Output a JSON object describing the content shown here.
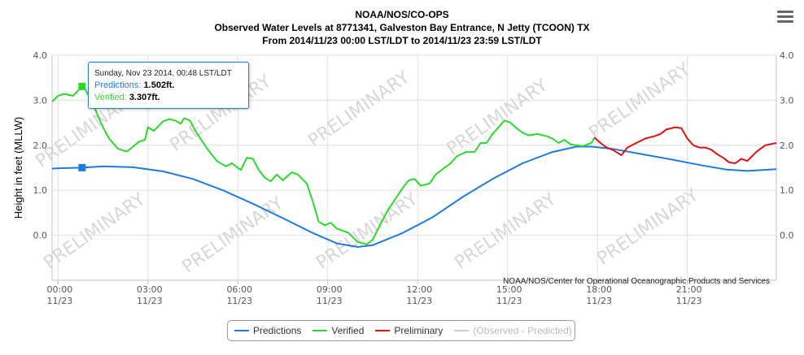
{
  "header": {
    "line1": "NOAA/NOS/CO-OPS",
    "line2": "Observed Water Levels at 8771341, Galveston Bay Entrance, N Jetty (TCOON) TX",
    "line3": "From 2014/11/23 00:00 LST/LDT to 2014/11/23 23:59 LST/LDT"
  },
  "menu_icon": "hamburger-menu-icon",
  "credit": "NOAA/NOS/Center for Operational Oceanographic Products and Services",
  "watermark": "PRELIMINARY",
  "tooltip": {
    "header": "Sunday, Nov 23 2014, 00:48 LST/LDT",
    "predictions_label": "Predictions:",
    "predictions_value": "1.502ft.",
    "verified_label": "Verified:",
    "verified_value": "3.307ft."
  },
  "legend": [
    {
      "label": "Predictions",
      "color": "#1e7be0",
      "enabled": true
    },
    {
      "label": "Verified",
      "color": "#2bd82b",
      "enabled": true
    },
    {
      "label": "Preliminary",
      "color": "#dd1111",
      "enabled": true
    },
    {
      "label": "(Observed - Predicted)",
      "color": "#cccccc",
      "enabled": false
    }
  ],
  "chart_data": {
    "type": "line",
    "xlabel": "",
    "ylabel": "Height in feet (MLLW)",
    "xlim": [
      -0.2,
      23.97
    ],
    "ylim": [
      -1.0,
      4.0
    ],
    "grid": true,
    "y_ticks": [
      "0.0",
      "1.0",
      "2.0",
      "3.0",
      "4.0"
    ],
    "x_ticks": [
      {
        "time": "00:00",
        "date": "11/23",
        "hour": 0
      },
      {
        "time": "03:00",
        "date": "11/23",
        "hour": 3
      },
      {
        "time": "06:00",
        "date": "11/23",
        "hour": 6
      },
      {
        "time": "09:00",
        "date": "11/23",
        "hour": 9
      },
      {
        "time": "12:00",
        "date": "11/23",
        "hour": 12
      },
      {
        "time": "15:00",
        "date": "11/23",
        "hour": 15
      },
      {
        "time": "18:00",
        "date": "11/23",
        "hour": 18
      },
      {
        "time": "21:00",
        "date": "11/23",
        "hour": 21
      }
    ],
    "highlighted_hour": 0.8,
    "series": [
      {
        "name": "Predictions",
        "color": "#1e7be0",
        "hours": [
          -0.2,
          0,
          0.8,
          1.5,
          2.5,
          3.5,
          4.5,
          5.5,
          6.5,
          7.5,
          8.5,
          9.3,
          10,
          10.5,
          11.5,
          12.5,
          13.5,
          14.5,
          15.5,
          16.5,
          17.3,
          17.8,
          18.5,
          19.5,
          20.5,
          21.5,
          22.3,
          23,
          23.97
        ],
        "values": [
          1.48,
          1.49,
          1.502,
          1.53,
          1.51,
          1.42,
          1.25,
          1.0,
          0.7,
          0.38,
          0.05,
          -0.18,
          -0.26,
          -0.22,
          0.05,
          0.4,
          0.85,
          1.25,
          1.6,
          1.85,
          1.97,
          1.97,
          1.92,
          1.8,
          1.68,
          1.55,
          1.46,
          1.43,
          1.47
        ]
      },
      {
        "name": "Verified",
        "color": "#2bd82b",
        "hours": [
          -0.2,
          0,
          0.2,
          0.5,
          0.8,
          0.9,
          1.1,
          1.3,
          1.5,
          1.7,
          2.0,
          2.3,
          2.5,
          2.7,
          2.9,
          3.0,
          3.2,
          3.5,
          3.7,
          3.9,
          4.1,
          4.2,
          4.4,
          4.6,
          5.0,
          5.3,
          5.6,
          5.8,
          6.1,
          6.3,
          6.5,
          6.7,
          6.9,
          7.1,
          7.3,
          7.5,
          7.8,
          8.0,
          8.3,
          8.5,
          8.7,
          8.9,
          9.1,
          9.3,
          9.5,
          9.7,
          10.0,
          10.3,
          10.5,
          10.8,
          11.0,
          11.3,
          11.5,
          11.7,
          11.9,
          12.1,
          12.4,
          12.6,
          12.9,
          13.1,
          13.3,
          13.6,
          13.9,
          14.1,
          14.3,
          14.5,
          14.7,
          14.9,
          15.1,
          15.3,
          15.5,
          15.7,
          16.0,
          16.3,
          16.5,
          16.7,
          16.9,
          17.1,
          17.3,
          17.5,
          17.8,
          17.9
        ],
        "values": [
          2.97,
          3.1,
          3.14,
          3.1,
          3.307,
          3.25,
          3.0,
          2.7,
          2.4,
          2.15,
          1.92,
          1.86,
          1.97,
          2.08,
          2.12,
          2.4,
          2.32,
          2.53,
          2.58,
          2.55,
          2.48,
          2.6,
          2.55,
          2.3,
          1.9,
          1.65,
          1.53,
          1.6,
          1.45,
          1.72,
          1.7,
          1.45,
          1.28,
          1.2,
          1.35,
          1.22,
          1.4,
          1.35,
          1.15,
          0.75,
          0.3,
          0.22,
          0.28,
          0.15,
          0.1,
          0.05,
          -0.15,
          -0.2,
          -0.1,
          0.3,
          0.55,
          0.85,
          1.05,
          1.22,
          1.25,
          1.1,
          1.15,
          1.35,
          1.5,
          1.6,
          1.75,
          1.85,
          1.85,
          2.05,
          2.05,
          2.25,
          2.4,
          2.55,
          2.5,
          2.38,
          2.28,
          2.22,
          2.25,
          2.2,
          2.15,
          2.05,
          2.12,
          2.02,
          2.0,
          1.98,
          2.05,
          2.17
        ]
      },
      {
        "name": "Preliminary",
        "color": "#dd1111",
        "hours": [
          17.9,
          18.1,
          18.3,
          18.5,
          18.8,
          19.0,
          19.3,
          19.6,
          19.9,
          20.1,
          20.3,
          20.6,
          20.8,
          21.0,
          21.2,
          21.4,
          21.6,
          21.8,
          22.0,
          22.2,
          22.4,
          22.6,
          22.8,
          23.0,
          23.3,
          23.6,
          23.97
        ],
        "values": [
          2.17,
          2.05,
          1.95,
          1.9,
          1.78,
          1.95,
          2.05,
          2.15,
          2.2,
          2.25,
          2.35,
          2.4,
          2.38,
          2.15,
          2.0,
          1.95,
          1.95,
          1.9,
          1.8,
          1.72,
          1.62,
          1.6,
          1.7,
          1.65,
          1.85,
          2.0,
          2.05
        ]
      }
    ]
  }
}
